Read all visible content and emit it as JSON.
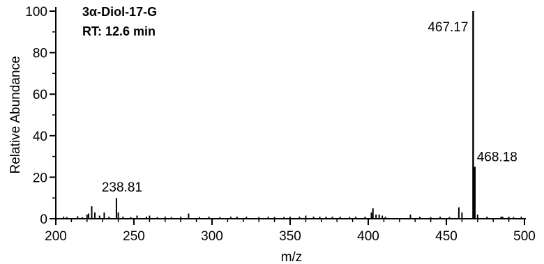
{
  "chart_data": {
    "type": "bar",
    "title_lines": [
      "3α-Diol-17-G",
      "RT: 12.6 min"
    ],
    "xlabel": "m/z",
    "ylabel": "Relative Abundance",
    "xlim": [
      200,
      500
    ],
    "ylim": [
      0,
      100
    ],
    "x_ticks": [
      200,
      250,
      300,
      350,
      400,
      450,
      500
    ],
    "y_ticks": [
      0,
      20,
      40,
      60,
      80,
      100
    ],
    "annotations": [
      {
        "x": 467.17,
        "y": 100,
        "label": "467.17"
      },
      {
        "x": 468.18,
        "y": 25,
        "label": "468.18"
      },
      {
        "x": 238.81,
        "y": 10,
        "label": "238.81"
      }
    ],
    "peaks": [
      {
        "x": 205,
        "y": 1
      },
      {
        "x": 207,
        "y": 0.8
      },
      {
        "x": 214,
        "y": 1.2
      },
      {
        "x": 217,
        "y": 0.7
      },
      {
        "x": 220,
        "y": 2
      },
      {
        "x": 221,
        "y": 2.5
      },
      {
        "x": 223,
        "y": 6
      },
      {
        "x": 225,
        "y": 3
      },
      {
        "x": 228,
        "y": 1.5
      },
      {
        "x": 231,
        "y": 3
      },
      {
        "x": 234,
        "y": 1
      },
      {
        "x": 238.81,
        "y": 10
      },
      {
        "x": 240,
        "y": 3
      },
      {
        "x": 243,
        "y": 1
      },
      {
        "x": 248,
        "y": 0.8
      },
      {
        "x": 252,
        "y": 1.5
      },
      {
        "x": 258,
        "y": 1
      },
      {
        "x": 260,
        "y": 1.5
      },
      {
        "x": 265,
        "y": 0.8
      },
      {
        "x": 270,
        "y": 1
      },
      {
        "x": 274,
        "y": 0.8
      },
      {
        "x": 280,
        "y": 1
      },
      {
        "x": 285,
        "y": 2.5
      },
      {
        "x": 292,
        "y": 0.8
      },
      {
        "x": 298,
        "y": 1
      },
      {
        "x": 305,
        "y": 0.8
      },
      {
        "x": 312,
        "y": 1
      },
      {
        "x": 316,
        "y": 1
      },
      {
        "x": 322,
        "y": 1
      },
      {
        "x": 330,
        "y": 0.8
      },
      {
        "x": 336,
        "y": 1
      },
      {
        "x": 340,
        "y": 0.8
      },
      {
        "x": 346,
        "y": 0.8
      },
      {
        "x": 350,
        "y": 1
      },
      {
        "x": 356,
        "y": 1
      },
      {
        "x": 360,
        "y": 1.5
      },
      {
        "x": 365,
        "y": 1
      },
      {
        "x": 369,
        "y": 1
      },
      {
        "x": 373,
        "y": 1
      },
      {
        "x": 377,
        "y": 1
      },
      {
        "x": 382,
        "y": 1
      },
      {
        "x": 388,
        "y": 0.8
      },
      {
        "x": 392,
        "y": 1
      },
      {
        "x": 398,
        "y": 1
      },
      {
        "x": 402,
        "y": 3
      },
      {
        "x": 403,
        "y": 5
      },
      {
        "x": 405,
        "y": 2
      },
      {
        "x": 407,
        "y": 2
      },
      {
        "x": 409,
        "y": 1.5
      },
      {
        "x": 411,
        "y": 1
      },
      {
        "x": 427,
        "y": 2
      },
      {
        "x": 433,
        "y": 1
      },
      {
        "x": 440,
        "y": 0.8
      },
      {
        "x": 446,
        "y": 1
      },
      {
        "x": 452,
        "y": 0.8
      },
      {
        "x": 458,
        "y": 5.5
      },
      {
        "x": 460,
        "y": 3
      },
      {
        "x": 467.17,
        "y": 100
      },
      {
        "x": 468.18,
        "y": 25
      },
      {
        "x": 470,
        "y": 2
      },
      {
        "x": 476,
        "y": 1
      },
      {
        "x": 485,
        "y": 1
      },
      {
        "x": 486,
        "y": 1
      },
      {
        "x": 490,
        "y": 1
      },
      {
        "x": 493,
        "y": 0.8
      },
      {
        "x": 498,
        "y": 1
      }
    ]
  }
}
